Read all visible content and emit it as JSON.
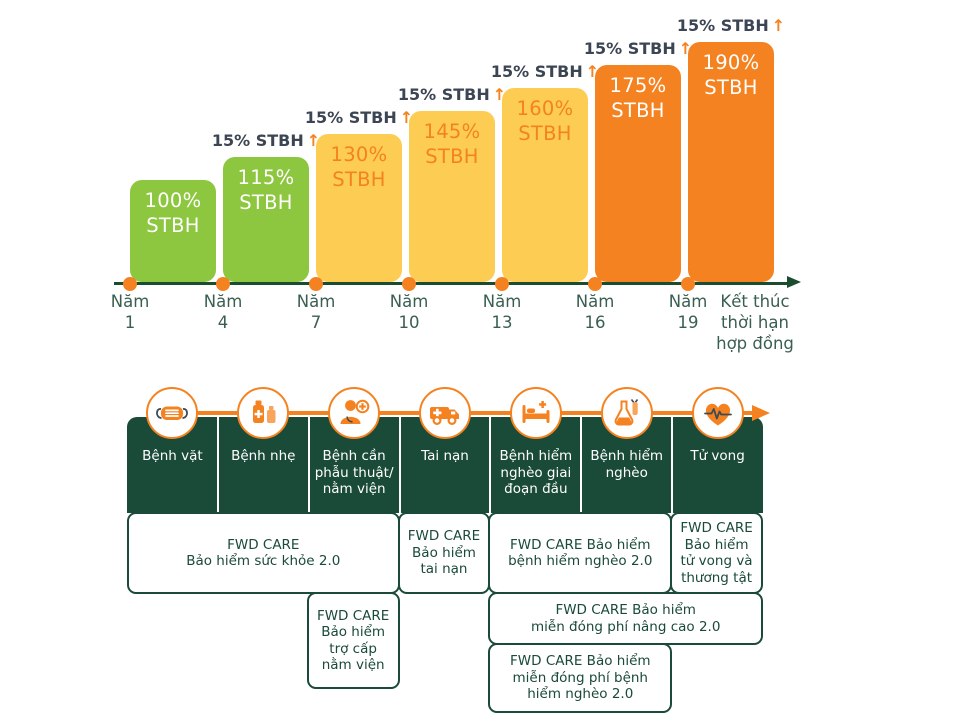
{
  "colors": {
    "orange": "#F58220",
    "orange_light": "#F9A45B",
    "green": "#8DC63F",
    "yellow": "#FCCD52",
    "dark_green": "#1A4A38",
    "axis_line_green": "#1A4C30",
    "axis_text_green": "#3A5F51",
    "increase_label_dark": "#3C4553",
    "white": "#FFFFFF",
    "icon_accent_dark": "#3E4A54"
  },
  "chart_data": {
    "type": "bar",
    "title": "",
    "xlabel": "",
    "ylabel": "",
    "unit_label": "STBH",
    "values": [
      100,
      115,
      130,
      145,
      160,
      175,
      190
    ],
    "bar_colors": [
      "green",
      "green",
      "yellow",
      "yellow",
      "yellow",
      "orange",
      "orange"
    ],
    "increase_labels": [
      null,
      "15% STBH",
      "15% STBH",
      "15% STBH",
      "15% STBH",
      "15% STBH",
      "15% STBH"
    ],
    "increase_arrow": "↑",
    "categories": [
      "Năm\n1",
      "Năm\n4",
      "Năm\n7",
      "Năm\n10",
      "Năm\n13",
      "Năm\n16",
      "Năm\n19"
    ],
    "x_end_label": "Kết thúc\nthời hạn\nhợp đồng",
    "ylim": [
      0,
      200
    ],
    "grid": false,
    "legend": false
  },
  "table": {
    "columns": [
      {
        "icon": "mask-icon",
        "label": "Bệnh vặt"
      },
      {
        "icon": "medicine-icon",
        "label": "Bệnh nhẹ"
      },
      {
        "icon": "doctor-icon",
        "label": "Bệnh cần\nphẫu thuật/\nnằm viện"
      },
      {
        "icon": "ambulance-icon",
        "label": "Tai nạn"
      },
      {
        "icon": "hospital-bed-icon",
        "label": "Bệnh hiểm\nnghèo giai\nđoạn đầu"
      },
      {
        "icon": "flask-icon",
        "label": "Bệnh hiểm\nnghèo"
      },
      {
        "icon": "heart-pulse-icon",
        "label": "Tử vong"
      }
    ],
    "products": [
      {
        "label": "FWD CARE\nBảo hiểm sức khỏe 2.0",
        "col_start": 0,
        "col_span": 3,
        "row": 0
      },
      {
        "label": "FWD CARE\nBảo hiểm\ntai nạn",
        "col_start": 3,
        "col_span": 1,
        "row": 0
      },
      {
        "label": "FWD CARE Bảo hiểm\nbệnh hiểm nghèo 2.0",
        "col_start": 4,
        "col_span": 2,
        "row": 0
      },
      {
        "label": "FWD CARE\nBảo hiểm\ntử vong và\nthương tật",
        "col_start": 6,
        "col_span": 1,
        "row": 0
      },
      {
        "label": "FWD CARE\nBảo hiểm\ntrợ cấp\nnằm viện",
        "col_start": 2,
        "col_span": 1,
        "row": 1
      },
      {
        "label": "FWD CARE Bảo hiểm\nmiễn đóng phí nâng cao 2.0",
        "col_start": 4,
        "col_span": 3,
        "row": 1
      },
      {
        "label": "FWD CARE Bảo hiểm\nmiễn đóng phí bệnh\nhiểm nghèo 2.0",
        "col_start": 4,
        "col_span": 2,
        "row": 2
      }
    ]
  }
}
